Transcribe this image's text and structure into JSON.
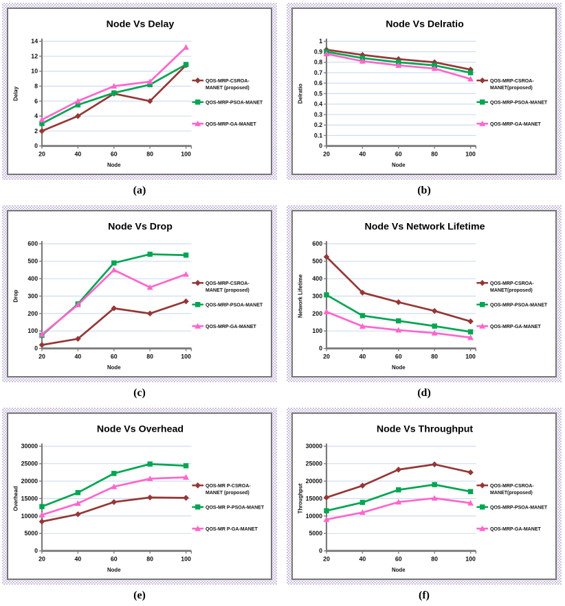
{
  "colors": {
    "series_csroa": "#953735",
    "series_psoa": "#00A651",
    "series_ga": "#FF66CC",
    "gridline": "#C9D9F0",
    "axis": "#7A7A7A",
    "frame_checker": "#CBBFE0",
    "panel_border": "#767676",
    "text": "#000000"
  },
  "chart_data": [
    {
      "panel": "a",
      "caption": "(a)",
      "type": "line",
      "title": "Node Vs Delay",
      "xlabel": "Node",
      "ylabel": "Delay",
      "x": [
        20,
        40,
        60,
        80,
        100
      ],
      "ylim": [
        0,
        14
      ],
      "ytick_step": 2,
      "grid": true,
      "legend_position": "right",
      "series": [
        {
          "name": "QOS-MRP-CSROA-MANET (proposed)",
          "legend_lines": [
            "QOS-MRP-CSROA-",
            "MANET (proposed)"
          ],
          "color": "#953735",
          "marker": "diamond",
          "values": [
            2,
            4,
            7,
            6,
            10.8
          ]
        },
        {
          "name": "QOS-MRP-PSOA-MANET",
          "legend_lines": [
            "QOS-MRP-PSOA-MANET"
          ],
          "color": "#00A651",
          "marker": "square",
          "values": [
            3,
            5.5,
            7.1,
            8.2,
            10.9
          ]
        },
        {
          "name": "QOS-MRP-GA-MANET",
          "legend_lines": [
            "QOS-MRP-GA-MANET"
          ],
          "color": "#FF66CC",
          "marker": "triangle",
          "values": [
            3.5,
            6,
            8,
            8.6,
            13.2
          ]
        }
      ]
    },
    {
      "panel": "b",
      "caption": "(b)",
      "type": "line",
      "title": "Node Vs Delratio",
      "xlabel": "Node",
      "ylabel": "Delratio",
      "x": [
        20,
        40,
        60,
        80,
        100
      ],
      "ylim": [
        0,
        1
      ],
      "ytick_step": 0.1,
      "grid": true,
      "legend_position": "right",
      "series": [
        {
          "name": "QOS-MRP-CSROA-MANET(proposed)",
          "legend_lines": [
            "QOS-MRP-CSROA-",
            "MANET(proposed)"
          ],
          "color": "#953735",
          "marker": "diamond",
          "values": [
            0.92,
            0.87,
            0.83,
            0.8,
            0.73
          ]
        },
        {
          "name": "QOS-MRP-PSOA-MANET",
          "legend_lines": [
            "QOS-MRP-PSOA-MANET"
          ],
          "color": "#00A651",
          "marker": "square",
          "values": [
            0.9,
            0.84,
            0.8,
            0.77,
            0.7
          ]
        },
        {
          "name": "QOS-MRP-GA-MANET",
          "legend_lines": [
            "QOS-MRP-GA-MANET"
          ],
          "color": "#FF66CC",
          "marker": "triangle",
          "values": [
            0.88,
            0.81,
            0.77,
            0.74,
            0.64
          ]
        }
      ]
    },
    {
      "panel": "c",
      "caption": "(c)",
      "type": "line",
      "title": "Node Vs Drop",
      "xlabel": "Node",
      "ylabel": "Drop",
      "x": [
        20,
        40,
        60,
        80,
        100
      ],
      "ylim": [
        0,
        600
      ],
      "ytick_step": 100,
      "grid": true,
      "legend_position": "right",
      "series": [
        {
          "name": "QOS-MRP-CSROA-MANET (proposed)",
          "legend_lines": [
            "QOS-MRP-CSROA-",
            "MANET (proposed)"
          ],
          "color": "#953735",
          "marker": "diamond",
          "values": [
            20,
            55,
            230,
            200,
            270
          ]
        },
        {
          "name": "QOS-MRP-PSOA-MANET",
          "legend_lines": [
            "QOS-MRP-PSOA-MANET"
          ],
          "color": "#00A651",
          "marker": "square",
          "values": [
            75,
            255,
            490,
            540,
            535
          ]
        },
        {
          "name": "QOS-MRP-GA-MANET",
          "legend_lines": [
            "QOS-MRP-GA-MANET"
          ],
          "color": "#FF66CC",
          "marker": "triangle",
          "values": [
            80,
            250,
            450,
            350,
            425
          ]
        }
      ]
    },
    {
      "panel": "d",
      "caption": "(d)",
      "type": "line",
      "title": "Node Vs Network Lifetime",
      "xlabel": "Node",
      "ylabel": "Network Lifetime",
      "x": [
        20,
        40,
        60,
        80,
        100
      ],
      "ylim": [
        0,
        600
      ],
      "ytick_step": 100,
      "grid": true,
      "legend_position": "right",
      "series": [
        {
          "name": "QOS-MRP-CSROA-MANET(proposed)",
          "legend_lines": [
            "QOS-MRP-CSROA-",
            "MANET(proposed)"
          ],
          "color": "#953735",
          "marker": "diamond",
          "values": [
            525,
            320,
            265,
            215,
            155
          ]
        },
        {
          "name": "QOS-MRP-PSOA-MANET",
          "legend_lines": [
            "QOS-MRP-PSOA-MANET"
          ],
          "color": "#00A651",
          "marker": "square",
          "values": [
            307,
            188,
            158,
            128,
            95
          ]
        },
        {
          "name": "QOS-MRP-GA-MANET",
          "legend_lines": [
            "QOS-MRP-GA-MANET"
          ],
          "color": "#FF66CC",
          "marker": "triangle",
          "values": [
            210,
            127,
            105,
            88,
            62
          ]
        }
      ]
    },
    {
      "panel": "e",
      "caption": "(e)",
      "type": "line",
      "title": "Node Vs Overhead",
      "xlabel": "Node",
      "ylabel": "Overhead",
      "x": [
        20,
        40,
        60,
        80,
        100
      ],
      "ylim": [
        0,
        30000
      ],
      "ytick_step": 5000,
      "grid": true,
      "legend_position": "right",
      "series": [
        {
          "name": "QOS-MR P-CSROA-MANET (proposed)",
          "legend_lines": [
            "QOS-MR P-CSROA-",
            "MANET (proposed)"
          ],
          "color": "#953735",
          "marker": "diamond",
          "values": [
            8400,
            10500,
            14000,
            15300,
            15200
          ]
        },
        {
          "name": "QOS-MR P-PSOA-MANET",
          "legend_lines": [
            "QOS-MR P-PSOA-MANET"
          ],
          "color": "#00A651",
          "marker": "square",
          "values": [
            12700,
            16700,
            22200,
            24900,
            24400
          ]
        },
        {
          "name": "QOS-MR P-GA-MANET",
          "legend_lines": [
            "QOS-MR P-GA-MANET"
          ],
          "color": "#FF66CC",
          "marker": "triangle",
          "values": [
            10300,
            13600,
            18400,
            20700,
            21100
          ]
        }
      ]
    },
    {
      "panel": "f",
      "caption": "(f)",
      "type": "line",
      "title": "Node Vs Throughput",
      "xlabel": "Node",
      "ylabel": "Throughput",
      "x": [
        20,
        40,
        60,
        80,
        100
      ],
      "ylim": [
        0,
        30000
      ],
      "ytick_step": 5000,
      "grid": true,
      "legend_position": "right",
      "series": [
        {
          "name": "QOS-MRP-CSROA-MANET(proposed)",
          "legend_lines": [
            "QOS-MRP-CSROA-",
            "MANET(proposed)"
          ],
          "color": "#953735",
          "marker": "diamond",
          "values": [
            15300,
            18700,
            23300,
            24800,
            22500
          ]
        },
        {
          "name": "QOS-MRP-PSOA-MANET",
          "legend_lines": [
            "QOS-MRP-PSOA-MANET"
          ],
          "color": "#00A651",
          "marker": "square",
          "values": [
            11500,
            13900,
            17500,
            19000,
            17000
          ]
        },
        {
          "name": "QOS-MRP-GA-MANET",
          "legend_lines": [
            "QOS-MRP-GA-MANET"
          ],
          "color": "#FF66CC",
          "marker": "triangle",
          "values": [
            9000,
            11000,
            14000,
            15100,
            13700
          ]
        }
      ]
    }
  ]
}
